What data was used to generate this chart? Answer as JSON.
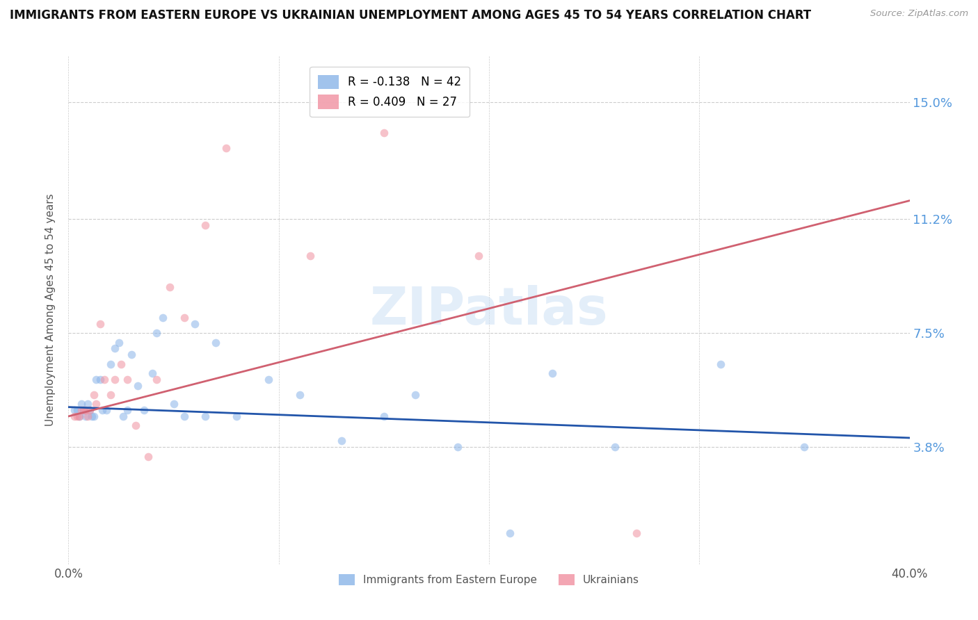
{
  "title": "IMMIGRANTS FROM EASTERN EUROPE VS UKRAINIAN UNEMPLOYMENT AMONG AGES 45 TO 54 YEARS CORRELATION CHART",
  "source": "Source: ZipAtlas.com",
  "ylabel": "Unemployment Among Ages 45 to 54 years",
  "xlim": [
    0.0,
    0.4
  ],
  "ylim": [
    0.0,
    0.165
  ],
  "yticks": [
    0.038,
    0.075,
    0.112,
    0.15
  ],
  "ytick_labels": [
    "3.8%",
    "7.5%",
    "11.2%",
    "15.0%"
  ],
  "xticks": [
    0.0,
    0.1,
    0.2,
    0.3,
    0.4
  ],
  "xtick_labels": [
    "0.0%",
    "",
    "",
    "",
    "40.0%"
  ],
  "watermark": "ZIPatlas",
  "blue_scatter_x": [
    0.003,
    0.004,
    0.005,
    0.006,
    0.007,
    0.008,
    0.009,
    0.01,
    0.011,
    0.012,
    0.013,
    0.015,
    0.016,
    0.018,
    0.02,
    0.022,
    0.024,
    0.026,
    0.028,
    0.03,
    0.033,
    0.036,
    0.04,
    0.042,
    0.045,
    0.05,
    0.055,
    0.06,
    0.065,
    0.07,
    0.08,
    0.095,
    0.11,
    0.13,
    0.15,
    0.165,
    0.185,
    0.21,
    0.23,
    0.26,
    0.31,
    0.35
  ],
  "blue_scatter_y": [
    0.05,
    0.05,
    0.048,
    0.052,
    0.05,
    0.048,
    0.052,
    0.05,
    0.048,
    0.048,
    0.06,
    0.06,
    0.05,
    0.05,
    0.065,
    0.07,
    0.072,
    0.048,
    0.05,
    0.068,
    0.058,
    0.05,
    0.062,
    0.075,
    0.08,
    0.052,
    0.048,
    0.078,
    0.048,
    0.072,
    0.048,
    0.06,
    0.055,
    0.04,
    0.048,
    0.055,
    0.038,
    0.01,
    0.062,
    0.038,
    0.065,
    0.038
  ],
  "pink_scatter_x": [
    0.003,
    0.004,
    0.005,
    0.006,
    0.007,
    0.008,
    0.009,
    0.01,
    0.012,
    0.013,
    0.015,
    0.017,
    0.02,
    0.022,
    0.025,
    0.028,
    0.032,
    0.038,
    0.042,
    0.048,
    0.055,
    0.065,
    0.075,
    0.115,
    0.15,
    0.195,
    0.27
  ],
  "pink_scatter_y": [
    0.048,
    0.048,
    0.048,
    0.05,
    0.05,
    0.05,
    0.048,
    0.05,
    0.055,
    0.052,
    0.078,
    0.06,
    0.055,
    0.06,
    0.065,
    0.06,
    0.045,
    0.035,
    0.06,
    0.09,
    0.08,
    0.11,
    0.135,
    0.1,
    0.14,
    0.1,
    0.01
  ],
  "blue_line_x": [
    0.0,
    0.4
  ],
  "blue_line_y": [
    0.051,
    0.041
  ],
  "pink_line_x": [
    0.0,
    0.4
  ],
  "pink_line_y": [
    0.048,
    0.118
  ],
  "blue_color": "#8ab4e8",
  "pink_color": "#f090a0",
  "blue_line_color": "#2255aa",
  "pink_line_color": "#d06070",
  "scatter_alpha": 0.55,
  "scatter_size": 70,
  "legend_blue_label": "R = -0.138   N = 42",
  "legend_pink_label": "R = 0.409   N = 27",
  "bottom_legend_blue": "Immigrants from Eastern Europe",
  "bottom_legend_pink": "Ukrainians"
}
